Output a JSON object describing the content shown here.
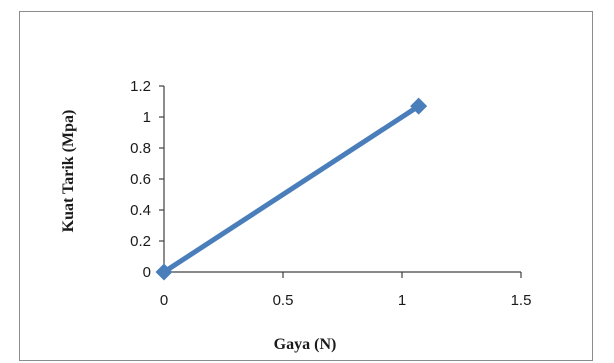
{
  "chart_data": {
    "type": "line",
    "title": "",
    "xlabel": "Gaya (N)",
    "ylabel": "Kuat Tarik (Mpa)",
    "xlim": [
      0,
      1.5
    ],
    "ylim": [
      0,
      1.2
    ],
    "x_ticks": [
      "0",
      "0.5",
      "1",
      "1.5"
    ],
    "y_ticks": [
      "0",
      "0.2",
      "0.4",
      "0.6",
      "0.8",
      "1",
      "1.2"
    ],
    "x_tick_values": [
      0,
      0.5,
      1,
      1.5
    ],
    "y_tick_values": [
      0,
      0.2,
      0.4,
      0.6,
      0.8,
      1,
      1.2
    ],
    "grid": false,
    "legend": "none",
    "marker": "diamond",
    "color": "#4a7ebb",
    "series": [
      {
        "x": [
          0,
          1.07
        ],
        "values": [
          0,
          1.07
        ]
      }
    ]
  }
}
